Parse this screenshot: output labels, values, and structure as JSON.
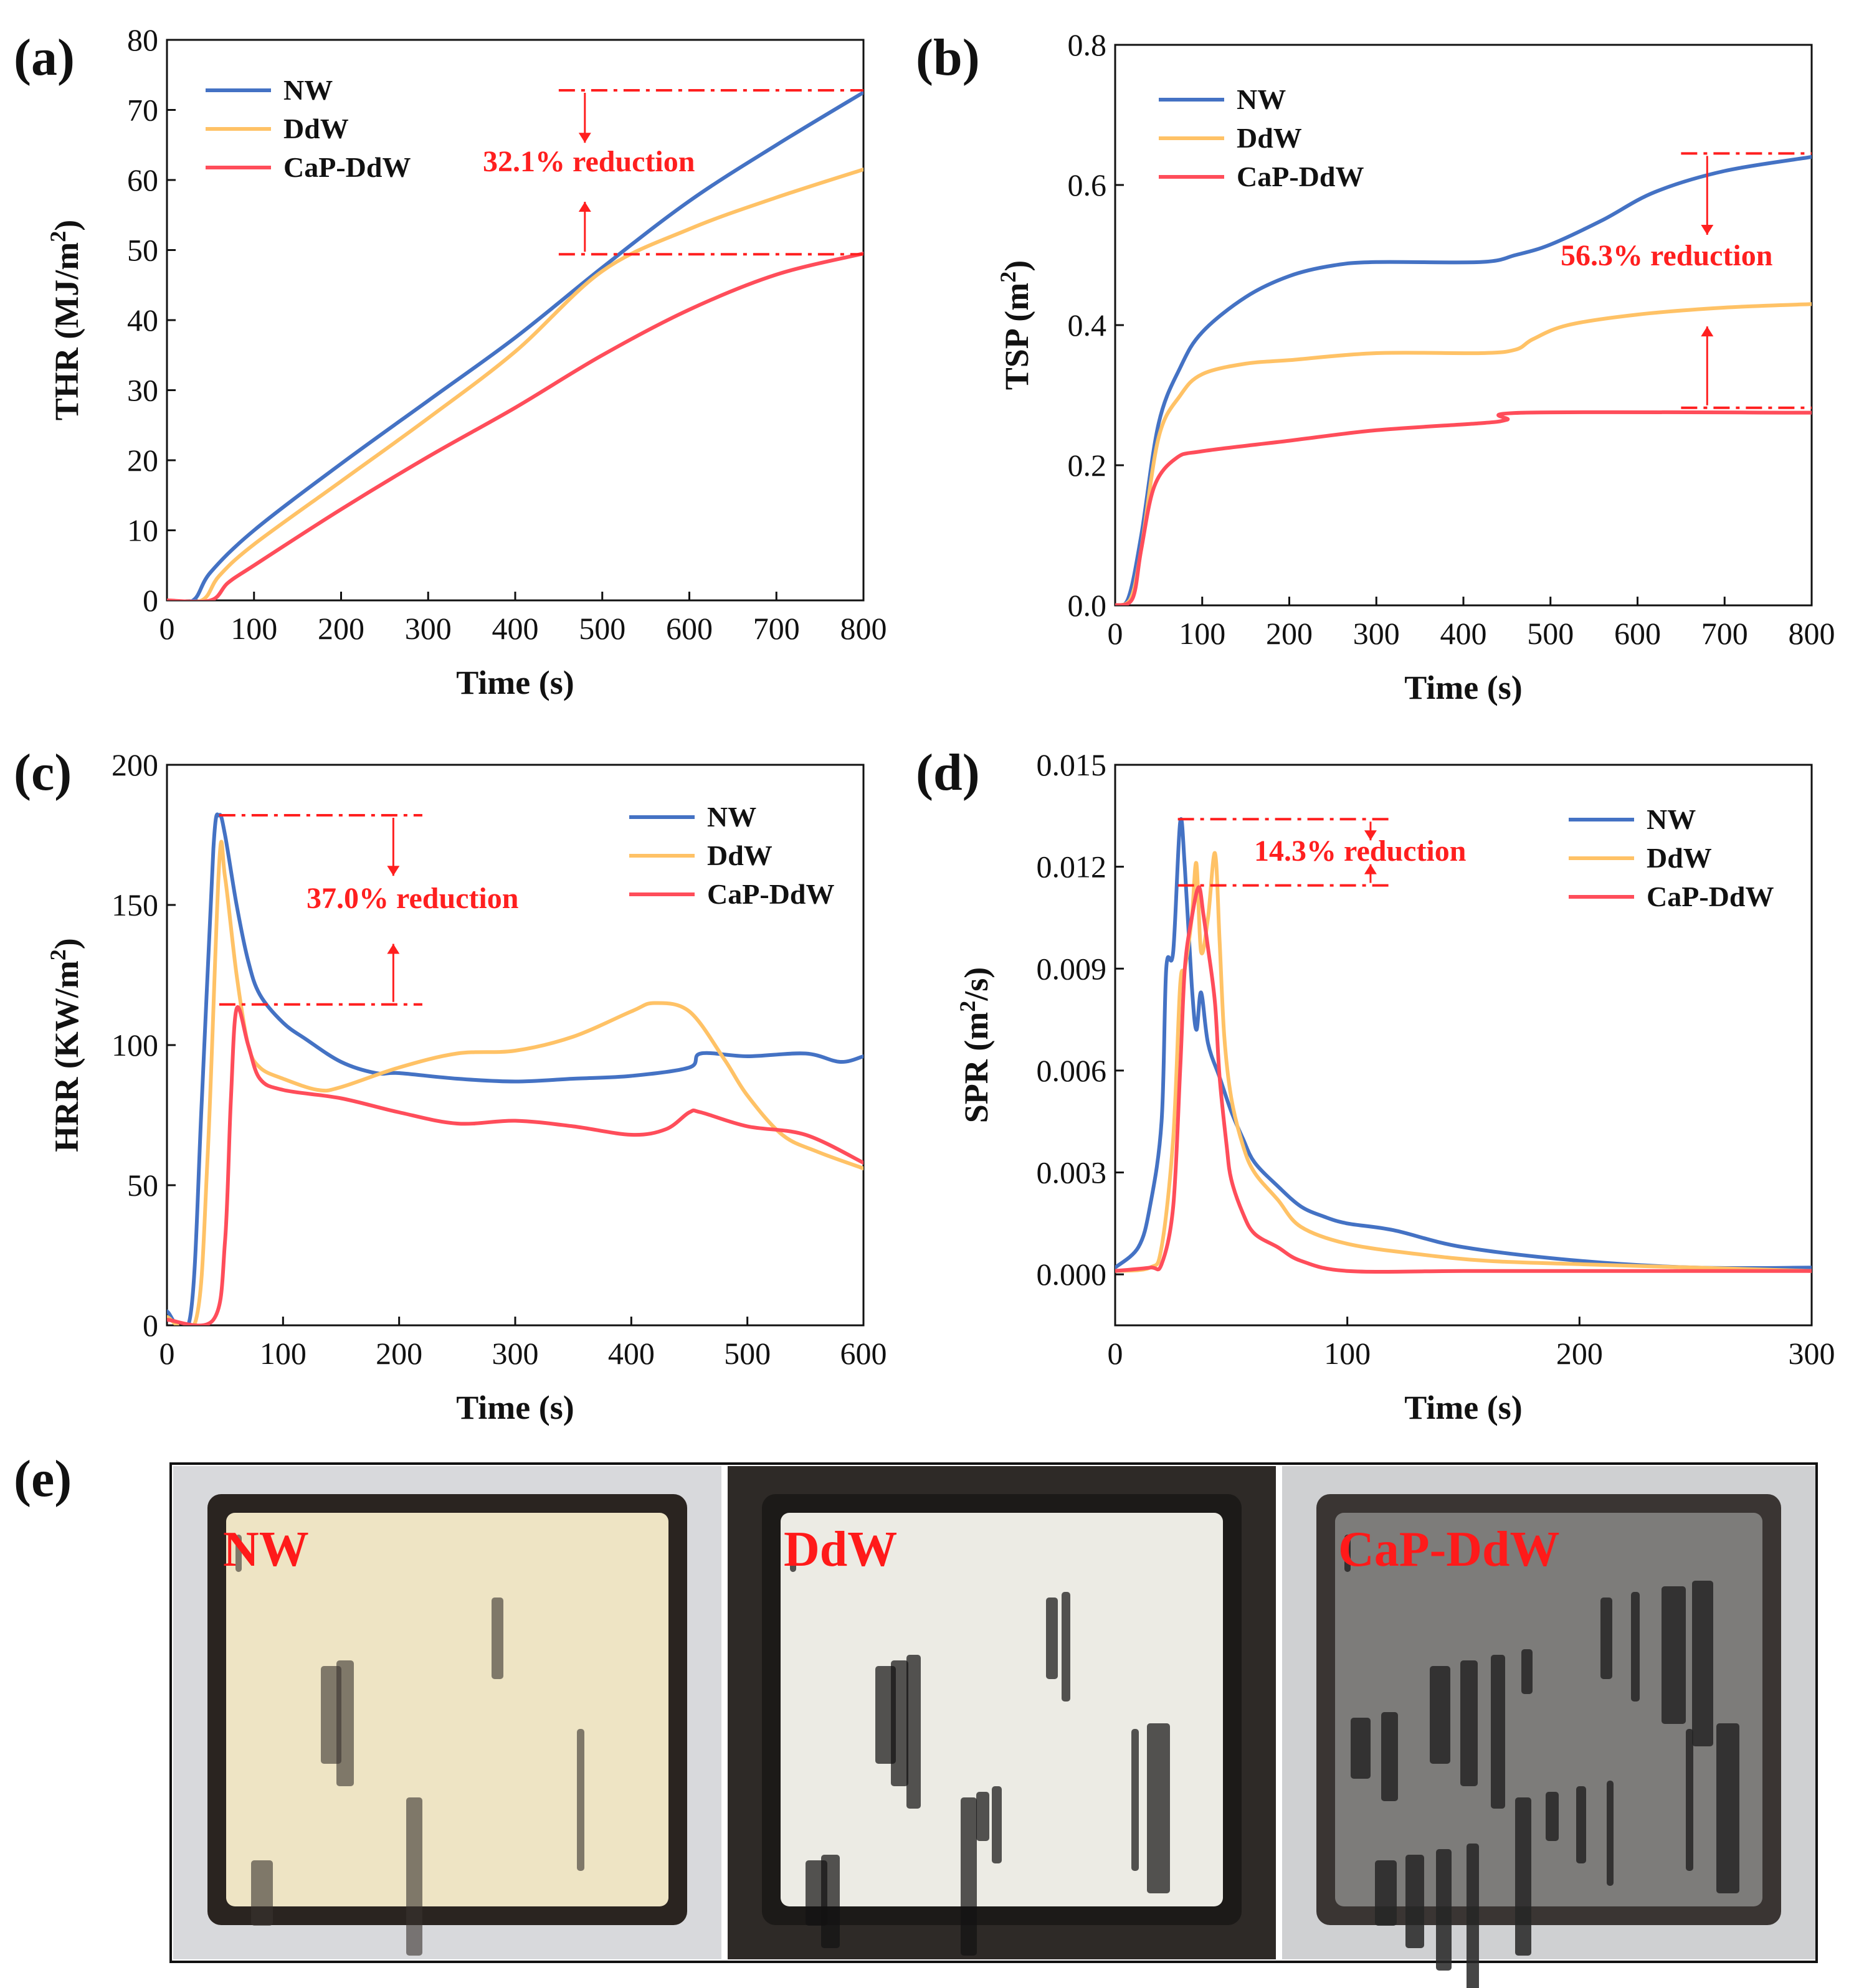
{
  "colors": {
    "NW": "#4472c4",
    "DdW": "#ffc266",
    "CaP-DdW": "#ff4d5a",
    "annotation": "#ff1f1f"
  },
  "chart_data": [
    {
      "id": "a",
      "label": "(a)",
      "type": "line",
      "xlabel": "Time (s)",
      "ylabel": "THR (MJ/m",
      "ylabel_sup": "2",
      "ylabel_end": ")",
      "xlim": [
        0,
        800
      ],
      "ylim": [
        0,
        80
      ],
      "xticks": [
        0,
        100,
        200,
        300,
        400,
        500,
        600,
        700,
        800
      ],
      "yticks": [
        0,
        10,
        20,
        30,
        40,
        50,
        60,
        70,
        80
      ],
      "legend": [
        "NW",
        "DdW",
        "CaP-DdW"
      ],
      "series": [
        {
          "name": "NW",
          "x": [
            0,
            30,
            50,
            100,
            200,
            300,
            400,
            500,
            600,
            700,
            800
          ],
          "y": [
            0,
            0,
            4,
            10,
            19.5,
            28.5,
            37.5,
            47.5,
            57,
            65,
            72.5
          ]
        },
        {
          "name": "DdW",
          "x": [
            0,
            40,
            60,
            100,
            200,
            300,
            400,
            500,
            600,
            700,
            800
          ],
          "y": [
            0,
            0,
            3.5,
            8,
            17,
            26,
            35.5,
            47,
            53,
            57.5,
            61.5
          ]
        },
        {
          "name": "CaP-DdW",
          "x": [
            0,
            50,
            70,
            100,
            200,
            300,
            400,
            500,
            600,
            700,
            800
          ],
          "y": [
            0,
            0,
            2.5,
            5,
            13,
            20.5,
            27.5,
            35,
            41.5,
            46.5,
            49.5
          ]
        }
      ],
      "annotation": {
        "text": "32.1% reduction",
        "from": 72.8,
        "to": 49.4,
        "x_start": 450,
        "x_end": 800,
        "x_arrow": 480
      }
    },
    {
      "id": "b",
      "label": "(b)",
      "type": "line",
      "xlabel": "Time (s)",
      "ylabel": "TSP (m",
      "ylabel_sup": "2",
      "ylabel_end": ")",
      "xlim": [
        0,
        800
      ],
      "ylim": [
        0,
        0.8
      ],
      "xticks": [
        0,
        100,
        200,
        300,
        400,
        500,
        600,
        700,
        800
      ],
      "yticks": [
        "0.0",
        "0.2",
        "0.4",
        "0.6",
        "0.8"
      ],
      "legend": [
        "NW",
        "DdW",
        "CaP-DdW"
      ],
      "series": [
        {
          "name": "NW",
          "x": [
            0,
            15,
            30,
            50,
            75,
            100,
            150,
            200,
            250,
            300,
            420,
            460,
            500,
            560,
            620,
            700,
            800
          ],
          "y": [
            0,
            0.01,
            0.1,
            0.26,
            0.34,
            0.39,
            0.44,
            0.47,
            0.485,
            0.49,
            0.49,
            0.5,
            0.515,
            0.55,
            0.59,
            0.62,
            0.64
          ]
        },
        {
          "name": "DdW",
          "x": [
            0,
            18,
            30,
            50,
            75,
            100,
            150,
            200,
            300,
            420,
            460,
            480,
            520,
            600,
            700,
            800
          ],
          "y": [
            0,
            0.01,
            0.08,
            0.24,
            0.3,
            0.33,
            0.345,
            0.35,
            0.36,
            0.36,
            0.365,
            0.38,
            0.4,
            0.415,
            0.425,
            0.43
          ]
        },
        {
          "name": "CaP-DdW",
          "x": [
            0,
            20,
            30,
            45,
            70,
            100,
            200,
            300,
            420,
            450,
            470,
            800
          ],
          "y": [
            0,
            0.01,
            0.08,
            0.17,
            0.21,
            0.22,
            0.235,
            0.25,
            0.26,
            0.265,
            0.275,
            0.275
          ]
        }
      ],
      "annotation": {
        "text": "56.3% reduction",
        "from": 0.645,
        "to": 0.282,
        "x_start": 650,
        "x_end": 800,
        "x_arrow": 680
      }
    },
    {
      "id": "c",
      "label": "(c)",
      "type": "line",
      "xlabel": "Time (s)",
      "ylabel": "HRR (KW/m",
      "ylabel_sup": "2",
      "ylabel_end": ")",
      "xlim": [
        0,
        600
      ],
      "ylim": [
        0,
        200
      ],
      "xticks": [
        0,
        100,
        200,
        300,
        400,
        500,
        600
      ],
      "yticks": [
        0,
        50,
        100,
        150,
        200
      ],
      "legend": [
        "NW",
        "DdW",
        "CaP-DdW"
      ],
      "series": [
        {
          "name": "NW",
          "x": [
            0,
            20,
            30,
            40,
            45,
            50,
            60,
            70,
            80,
            100,
            120,
            150,
            180,
            200,
            250,
            300,
            350,
            400,
            450,
            460,
            500,
            550,
            580,
            600
          ],
          "y": [
            5,
            3,
            80,
            170,
            182,
            175,
            150,
            130,
            118,
            108,
            102,
            94,
            90,
            90,
            88,
            87,
            88,
            89,
            92,
            97,
            96,
            97,
            94,
            96
          ]
        },
        {
          "name": "DdW",
          "x": [
            0,
            25,
            35,
            45,
            50,
            60,
            70,
            80,
            100,
            130,
            150,
            200,
            250,
            300,
            350,
            400,
            420,
            450,
            480,
            500,
            530,
            560,
            600
          ],
          "y": [
            3,
            2,
            60,
            165,
            160,
            125,
            100,
            92,
            88,
            84,
            85,
            92,
            97,
            98,
            103,
            112,
            115,
            112,
            95,
            82,
            68,
            62,
            56
          ]
        },
        {
          "name": "CaP-DdW",
          "x": [
            0,
            40,
            50,
            55,
            60,
            70,
            80,
            100,
            150,
            200,
            250,
            300,
            350,
            400,
            430,
            450,
            460,
            500,
            550,
            600
          ],
          "y": [
            2,
            2,
            30,
            80,
            113,
            100,
            88,
            84,
            81,
            76,
            72,
            73,
            71,
            68,
            70,
            76,
            76,
            71,
            68,
            58
          ]
        }
      ],
      "annotation": {
        "text": "37.0% reduction",
        "from": 182,
        "to": 114.5,
        "x_start": 45,
        "x_end": 220,
        "x_arrow": 195
      }
    },
    {
      "id": "d",
      "label": "(d)",
      "type": "line",
      "xlabel": "Time (s)",
      "ylabel": "SPR (m",
      "ylabel_sup": "2",
      "ylabel_end": "/s)",
      "xlim": [
        0,
        300
      ],
      "ylim": [
        -0.0015,
        0.015
      ],
      "xticks": [
        0,
        100,
        200,
        300
      ],
      "yticks": [
        "0.000",
        "0.003",
        "0.006",
        "0.009",
        "0.012",
        "0.015"
      ],
      "legend": [
        "NW",
        "DdW",
        "CaP-DdW"
      ],
      "series": [
        {
          "name": "NW",
          "x": [
            0,
            10,
            15,
            20,
            22,
            25,
            28,
            30,
            33,
            35,
            37,
            40,
            45,
            50,
            55,
            60,
            70,
            80,
            90,
            100,
            120,
            150,
            200,
            250,
            300
          ],
          "y": [
            0.0002,
            0.0008,
            0.002,
            0.0045,
            0.009,
            0.0095,
            0.0133,
            0.012,
            0.0085,
            0.0072,
            0.0083,
            0.0068,
            0.0058,
            0.0048,
            0.004,
            0.0033,
            0.0026,
            0.002,
            0.0017,
            0.0015,
            0.0013,
            0.0008,
            0.0004,
            0.0002,
            0.0002
          ]
        },
        {
          "name": "DdW",
          "x": [
            0,
            15,
            20,
            25,
            28,
            30,
            33,
            35,
            37,
            40,
            43,
            45,
            47,
            50,
            55,
            60,
            70,
            80,
            100,
            130,
            160,
            200,
            250,
            300
          ],
          "y": [
            0.0001,
            0.0002,
            0.0008,
            0.004,
            0.0085,
            0.009,
            0.0105,
            0.0121,
            0.0095,
            0.0105,
            0.0124,
            0.0098,
            0.007,
            0.0052,
            0.0038,
            0.003,
            0.0022,
            0.0014,
            0.0009,
            0.0006,
            0.0004,
            0.0003,
            0.0002,
            0.0001
          ]
        },
        {
          "name": "CaP-DdW",
          "x": [
            0,
            15,
            20,
            25,
            28,
            30,
            33,
            36,
            38,
            40,
            43,
            45,
            48,
            50,
            55,
            60,
            70,
            80,
            100,
            150,
            200,
            250,
            300
          ],
          "y": [
            0.0001,
            0.0002,
            0.0003,
            0.002,
            0.006,
            0.009,
            0.0105,
            0.0114,
            0.0106,
            0.0096,
            0.008,
            0.0058,
            0.0038,
            0.0028,
            0.0018,
            0.0012,
            0.0008,
            0.0004,
            0.0001,
            0.0001,
            0.0001,
            0.0001,
            0.0001
          ]
        }
      ],
      "annotation": {
        "text": "14.3% reduction",
        "from": 0.0134,
        "to": 0.01145,
        "x_start": 27,
        "x_end": 120,
        "x_arrow": 110
      }
    }
  ],
  "photos": {
    "label": "(e)",
    "items": [
      {
        "name": "NW",
        "label": "NW",
        "base": "#d8d9dc",
        "tray": "#2a2420",
        "content": "#eee4c4",
        "char": "#3a3230",
        "char_amount": 0.15
      },
      {
        "name": "DdW",
        "label": "DdW",
        "base": "#2e2a27",
        "tray": "#1c1a18",
        "content": "#ecebe4",
        "char": "#121212",
        "char_amount": 0.4
      },
      {
        "name": "CaP-DdW",
        "label": "CaP-DdW",
        "base": "#cfd0d2",
        "tray": "#3a3533",
        "content": "#7d7c7a",
        "char": "#262626",
        "char_amount": 0.75
      }
    ]
  }
}
